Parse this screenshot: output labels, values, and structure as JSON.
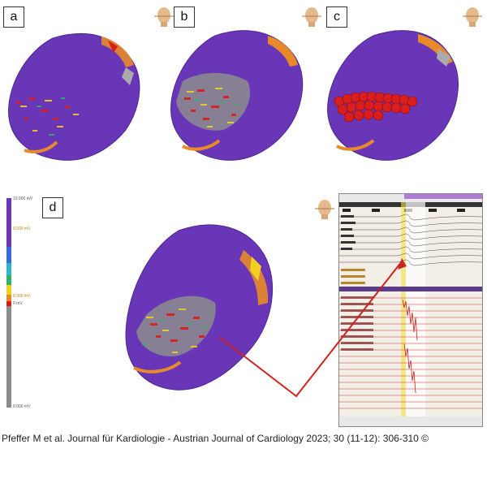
{
  "panels": {
    "a": {
      "label": "a"
    },
    "b": {
      "label": "b"
    },
    "c": {
      "label": "c"
    },
    "d": {
      "label": "d"
    }
  },
  "scale_bar": {
    "top_value": "10.000 mV",
    "upper_mid_value": "0.500 mV",
    "lower_mid_value": "0.300 mV",
    "zero_value": "0 mV",
    "bottom_value": "0.000 mV"
  },
  "citation": "Pfeffer M et al. Journal für Kardiologie - Austrian Journal of Cardiology 2023; 30 (11-12): 306-310 ©",
  "colors": {
    "chamber": "#6a36b8",
    "scar_red": "#d81e1e",
    "border_yellow": "#f0d020",
    "transitional_green": "#2fb36b",
    "arrow": "#d02020"
  }
}
